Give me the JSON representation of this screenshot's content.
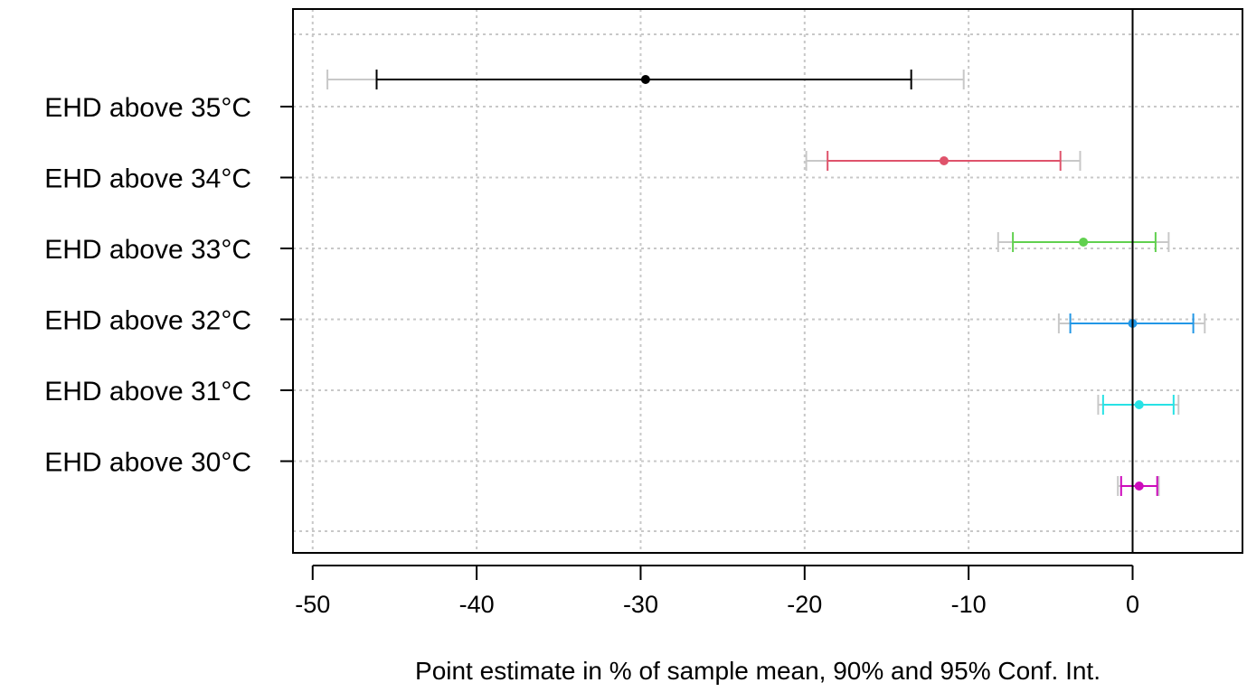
{
  "chart_data": {
    "type": "forest",
    "title": "",
    "xlabel": "Point estimate in % of sample mean, 90% and 95% Conf. Int.",
    "ylabel": "",
    "xlim": [
      -51.2,
      6.7
    ],
    "x_ticks": [
      "-50",
      "-40",
      "-30",
      "-20",
      "-10",
      "0"
    ],
    "x_tick_values": [
      -50,
      -40,
      -30,
      -20,
      -10,
      0
    ],
    "reference_line": 0,
    "grid": true,
    "ci90_color": "",
    "ci95_color": "#c8c8c8",
    "categories": [
      "EHD above 35°C",
      "EHD above 34°C",
      "EHD above 33°C",
      "EHD above 32°C",
      "EHD above 31°C",
      "EHD above 30°C"
    ],
    "series": [
      {
        "estimate": -29.7,
        "ci90": [
          -46.1,
          -13.5
        ],
        "ci95": [
          -49.1,
          -10.3
        ],
        "color": "#000000"
      },
      {
        "estimate": -11.5,
        "ci90": [
          -18.6,
          -4.4
        ],
        "ci95": [
          -19.9,
          -3.2
        ],
        "color": "#df536b"
      },
      {
        "estimate": -3.0,
        "ci90": [
          -7.3,
          1.4
        ],
        "ci95": [
          -8.2,
          2.2
        ],
        "color": "#61d04f"
      },
      {
        "estimate": 0.0,
        "ci90": [
          -3.8,
          3.7
        ],
        "ci95": [
          -4.5,
          4.4
        ],
        "color": "#2297e6"
      },
      {
        "estimate": 0.4,
        "ci90": [
          -1.8,
          2.5
        ],
        "ci95": [
          -2.1,
          2.8
        ],
        "color": "#28e2e5"
      },
      {
        "estimate": 0.4,
        "ci90": [
          -0.7,
          1.5
        ],
        "ci95": [
          -0.9,
          1.6
        ],
        "color": "#cd0bbc"
      }
    ]
  }
}
